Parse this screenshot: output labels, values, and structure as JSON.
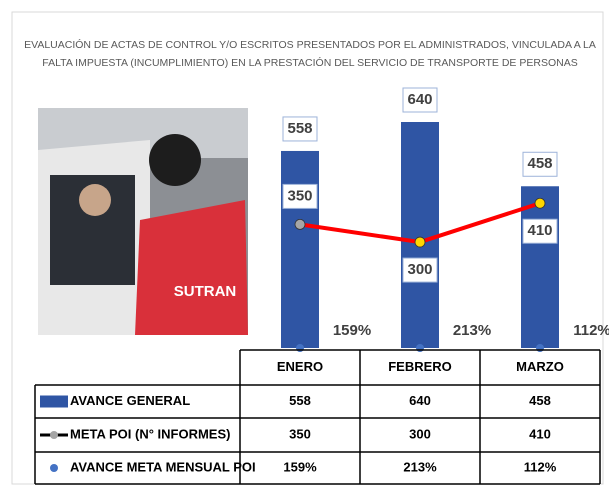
{
  "chart_data": {
    "type": "combo",
    "title_lines": [
      "EVALUACIÓN DE ACTAS DE CONTROL Y/O ESCRITOS PRESENTADOS POR EL ADMINISTRADOS, VINCULADA A LA",
      "FALTA IMPUESTA (INCUMPLIMIENTO) EN LA PRESTACIÓN DEL SERVICIO DE TRANSPORTE DE PERSONAS"
    ],
    "photo_text": "SUTRAN",
    "categories": [
      "ENERO",
      "FEBRERO",
      "MARZO"
    ],
    "series": [
      {
        "name": "AVANCE GENERAL",
        "type": "bar",
        "color": "#2f55a4",
        "values": [
          558,
          640,
          458
        ]
      },
      {
        "name": "META POI (N° INFORMES)",
        "type": "line",
        "color": "#ff0000",
        "marker_colors": [
          "#a6a6a6",
          "#ffd700",
          "#ffd700"
        ],
        "values": [
          350,
          300,
          410
        ]
      },
      {
        "name": "AVANCE META MENSUAL POI",
        "type": "scatter",
        "color": "#4472c4",
        "values": [
          159,
          213,
          112
        ],
        "value_labels": [
          "159%",
          "213%",
          "112%"
        ]
      }
    ]
  }
}
